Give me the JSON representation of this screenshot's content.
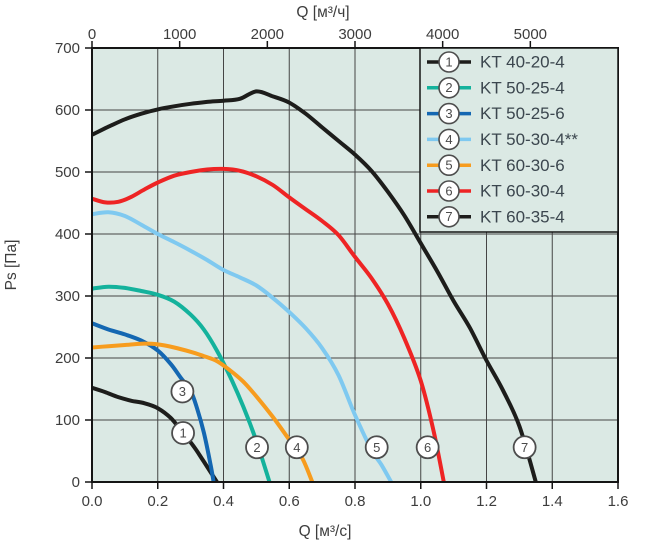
{
  "chart_data": {
    "type": "line",
    "plot_bg": "#dbe9e4",
    "grid_color": "#454545",
    "border_color": "#151515",
    "text_color": "#3d3d3d",
    "axes": {
      "top": {
        "label": "Q [м³/ч]",
        "min": 0,
        "max": 6000,
        "tick_values": [
          0,
          1000,
          2000,
          3000,
          4000,
          5000
        ],
        "tick_labels": [
          "0",
          "1000",
          "2000",
          "3000",
          "4000",
          "5000"
        ]
      },
      "bottom": {
        "label": "Q [м³/с]",
        "min": 0,
        "max": 1.6,
        "tick_values": [
          0,
          0.2,
          0.4,
          0.6,
          0.8,
          1.0,
          1.2,
          1.4,
          1.6
        ],
        "tick_labels": [
          "0.0",
          "0.2",
          "0.4",
          "0.6",
          "0.8",
          "1.0",
          "1.2",
          "1.4",
          "1.6"
        ]
      },
      "left": {
        "label": "Ps [Па]",
        "min": 0,
        "max": 700,
        "tick_values": [
          0,
          100,
          200,
          300,
          400,
          500,
          600,
          700
        ],
        "tick_labels": [
          "0",
          "100",
          "200",
          "300",
          "400",
          "500",
          "600",
          "700"
        ]
      }
    },
    "series": [
      {
        "num": 1,
        "name": "KT 40-20-4",
        "color": "#1d1d1b",
        "points": [
          [
            0,
            152
          ],
          [
            0.04,
            145
          ],
          [
            0.08,
            137
          ],
          [
            0.12,
            131
          ],
          [
            0.16,
            127
          ],
          [
            0.2,
            119
          ],
          [
            0.24,
            103
          ],
          [
            0.277,
            79
          ],
          [
            0.31,
            57
          ],
          [
            0.34,
            33
          ],
          [
            0.38,
            0
          ]
        ]
      },
      {
        "num": 2,
        "name": "KT 50-25-4",
        "color": "#14b29c",
        "points": [
          [
            0,
            312
          ],
          [
            0.05,
            315
          ],
          [
            0.1,
            313
          ],
          [
            0.15,
            308
          ],
          [
            0.2,
            302
          ],
          [
            0.25,
            291
          ],
          [
            0.3,
            270
          ],
          [
            0.34,
            246
          ],
          [
            0.38,
            212
          ],
          [
            0.42,
            170
          ],
          [
            0.46,
            122
          ],
          [
            0.5,
            66
          ],
          [
            0.54,
            0
          ]
        ]
      },
      {
        "num": 3,
        "name": "KT 50-25-6",
        "color": "#1467b2",
        "points": [
          [
            0,
            256
          ],
          [
            0.05,
            246
          ],
          [
            0.1,
            238
          ],
          [
            0.15,
            228
          ],
          [
            0.2,
            212
          ],
          [
            0.24,
            190
          ],
          [
            0.27,
            168
          ],
          [
            0.3,
            147
          ],
          [
            0.32,
            118
          ],
          [
            0.34,
            80
          ],
          [
            0.36,
            30
          ],
          [
            0.37,
            0
          ]
        ]
      },
      {
        "num": 4,
        "name": "KT 50-30-4**",
        "color": "#7fc9f0",
        "points": [
          [
            0,
            432
          ],
          [
            0.05,
            435
          ],
          [
            0.1,
            429
          ],
          [
            0.15,
            415
          ],
          [
            0.2,
            400
          ],
          [
            0.25,
            387
          ],
          [
            0.3,
            373
          ],
          [
            0.35,
            358
          ],
          [
            0.4,
            342
          ],
          [
            0.45,
            330
          ],
          [
            0.5,
            317
          ],
          [
            0.55,
            297
          ],
          [
            0.6,
            274
          ],
          [
            0.65,
            248
          ],
          [
            0.7,
            216
          ],
          [
            0.75,
            172
          ],
          [
            0.8,
            108
          ],
          [
            0.85,
            52
          ],
          [
            0.88,
            28
          ],
          [
            0.91,
            0
          ]
        ]
      },
      {
        "num": 5,
        "name": "KT 60-30-6",
        "color": "#f79c1e",
        "points": [
          [
            0,
            217
          ],
          [
            0.05,
            219
          ],
          [
            0.1,
            221
          ],
          [
            0.15,
            223
          ],
          [
            0.2,
            222
          ],
          [
            0.25,
            217
          ],
          [
            0.3,
            210
          ],
          [
            0.34,
            203
          ],
          [
            0.38,
            195
          ],
          [
            0.42,
            180
          ],
          [
            0.46,
            162
          ],
          [
            0.5,
            138
          ],
          [
            0.55,
            105
          ],
          [
            0.6,
            68
          ],
          [
            0.64,
            38
          ],
          [
            0.67,
            0
          ]
        ]
      },
      {
        "num": 6,
        "name": "KT 60-30-4",
        "color": "#ee2424",
        "points": [
          [
            0,
            457
          ],
          [
            0.04,
            451
          ],
          [
            0.08,
            452
          ],
          [
            0.12,
            460
          ],
          [
            0.16,
            472
          ],
          [
            0.2,
            483
          ],
          [
            0.25,
            494
          ],
          [
            0.3,
            500
          ],
          [
            0.35,
            504
          ],
          [
            0.4,
            505
          ],
          [
            0.45,
            502
          ],
          [
            0.5,
            493
          ],
          [
            0.55,
            479
          ],
          [
            0.6,
            459
          ],
          [
            0.65,
            440
          ],
          [
            0.7,
            421
          ],
          [
            0.75,
            398
          ],
          [
            0.8,
            363
          ],
          [
            0.85,
            329
          ],
          [
            0.9,
            287
          ],
          [
            0.95,
            232
          ],
          [
            1.0,
            163
          ],
          [
            1.04,
            80
          ],
          [
            1.07,
            0
          ]
        ]
      },
      {
        "num": 7,
        "name": "KT 60-35-4",
        "color": "#1d1d1b",
        "points": [
          [
            0,
            560
          ],
          [
            0.05,
            573
          ],
          [
            0.1,
            585
          ],
          [
            0.15,
            594
          ],
          [
            0.2,
            601
          ],
          [
            0.25,
            606
          ],
          [
            0.3,
            610
          ],
          [
            0.35,
            613
          ],
          [
            0.4,
            615
          ],
          [
            0.45,
            618
          ],
          [
            0.5,
            630
          ],
          [
            0.55,
            622
          ],
          [
            0.6,
            612
          ],
          [
            0.65,
            594
          ],
          [
            0.7,
            572
          ],
          [
            0.75,
            550
          ],
          [
            0.8,
            528
          ],
          [
            0.85,
            502
          ],
          [
            0.9,
            468
          ],
          [
            0.95,
            430
          ],
          [
            1.0,
            385
          ],
          [
            1.05,
            340
          ],
          [
            1.1,
            292
          ],
          [
            1.15,
            248
          ],
          [
            1.2,
            196
          ],
          [
            1.25,
            148
          ],
          [
            1.3,
            90
          ],
          [
            1.35,
            0
          ]
        ]
      }
    ],
    "curve_markers": [
      {
        "num": 1,
        "q": 0.277,
        "ps": 79
      },
      {
        "num": 2,
        "q": 0.502,
        "ps": 56
      },
      {
        "num": 3,
        "q": 0.275,
        "ps": 146
      },
      {
        "num": 4,
        "q": 0.623,
        "ps": 56
      },
      {
        "num": 5,
        "q": 0.866,
        "ps": 56
      },
      {
        "num": 6,
        "q": 1.021,
        "ps": 56
      },
      {
        "num": 7,
        "q": 1.316,
        "ps": 56
      }
    ],
    "marker_style": {
      "fill": "#ffffff",
      "stroke": "#4d4d4d",
      "text_color": "#4a4a4a"
    },
    "legend": {
      "position": "top-right"
    }
  }
}
